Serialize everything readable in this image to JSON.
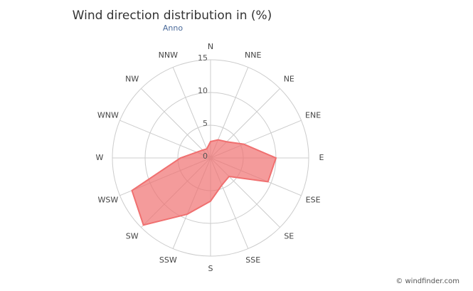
{
  "chart_data": {
    "type": "radar",
    "title": "Wind direction distribution in (%)",
    "subtitle": "Anno",
    "credit": "© windfinder.com",
    "categories": [
      "N",
      "NNE",
      "NE",
      "ENE",
      "E",
      "ESE",
      "SE",
      "SSE",
      "S",
      "SSW",
      "SW",
      "WSW",
      "W",
      "WNW",
      "NW",
      "NNW"
    ],
    "values": [
      2.5,
      3,
      3.5,
      5.5,
      10,
      9.5,
      4,
      4.5,
      6.6,
      9.3,
      14.5,
      13,
      4.6,
      2.3,
      1.7,
      1.5
    ],
    "color": "#f07070",
    "ylim": [
      0,
      15
    ],
    "yticks": [
      0,
      5,
      10,
      15
    ],
    "grid": true
  }
}
